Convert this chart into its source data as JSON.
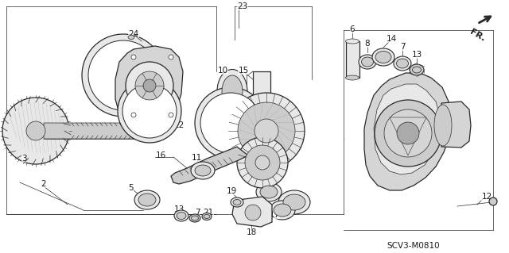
{
  "background_color": "#ffffff",
  "line_color": "#2a2a2a",
  "text_color": "#1a1a1a",
  "page_code": "SCV3-M0810",
  "fig_width": 6.4,
  "fig_height": 3.19,
  "dpi": 100,
  "lw_main": 0.9,
  "lw_thin": 0.5,
  "lw_thick": 1.4,
  "gray_light": "#e8e8e8",
  "gray_mid": "#cccccc",
  "gray_dark": "#aaaaaa",
  "gray_fill": "#d5d5d5"
}
